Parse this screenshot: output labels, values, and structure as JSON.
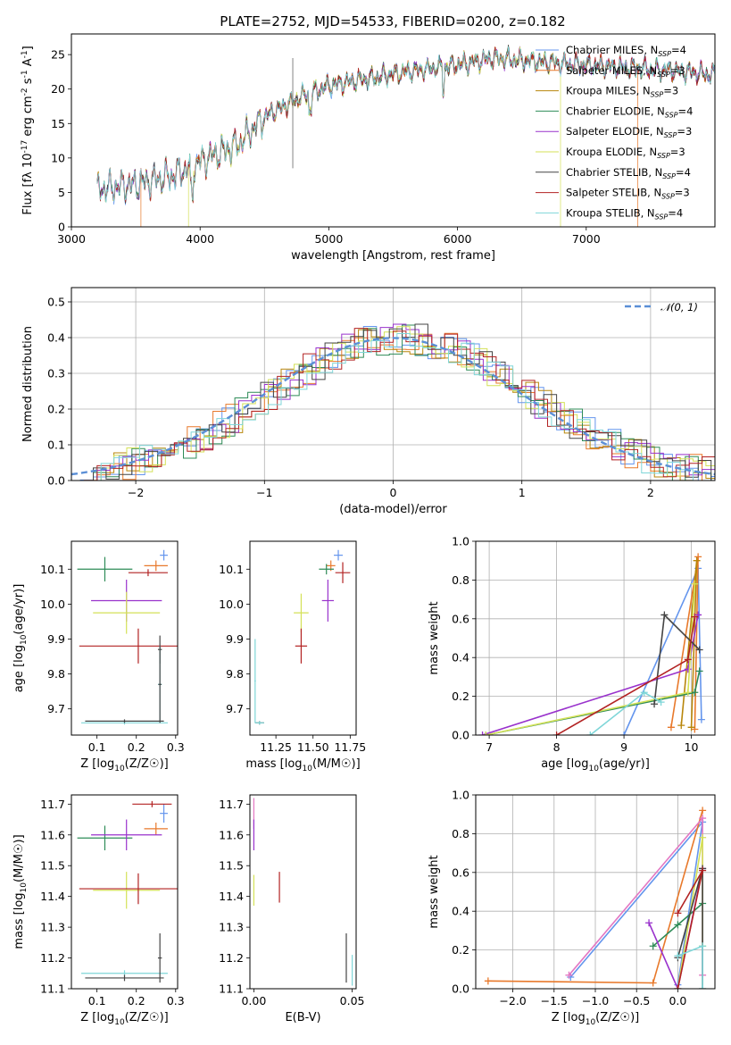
{
  "title": "PLATE=2752, MJD=54533, FIBERID=0200, z=0.182",
  "colors": [
    "#6495ed",
    "#e8792b",
    "#b8860b",
    "#2e8b57",
    "#9932cc",
    "#d4e157",
    "#444444",
    "#b22222",
    "#7fd6d8"
  ],
  "chart_data": [
    {
      "id": "spectrum",
      "type": "line",
      "xlabel": "wavelength [Angstrom, rest frame]",
      "ylabel": "Flux [f_λ 10^-17 erg cm^-2 s^-1 A^-1]",
      "xlim": [
        3000,
        8000
      ],
      "ylim": [
        0,
        28
      ],
      "xticks": [
        3000,
        4000,
        5000,
        6000,
        7000
      ],
      "yticks": [
        0,
        5,
        10,
        15,
        20,
        25
      ],
      "continuum": {
        "x": [
          3200,
          3500,
          3800,
          4000,
          4300,
          4500,
          4800,
          5000,
          5300,
          5600,
          6000,
          6300,
          6600,
          7000,
          7400,
          7800,
          8000
        ],
        "y": [
          5.5,
          6.2,
          7.5,
          9.5,
          12.0,
          16.0,
          19.0,
          20.5,
          21.5,
          22.5,
          23.5,
          24.5,
          24.0,
          23.5,
          23.0,
          22.5,
          22.0
        ]
      },
      "series": [
        {
          "name": "Chabrier MILES, N_SSP=4",
          "start": 3200,
          "end": 8000
        },
        {
          "name": "Salpeter MILES, N_SSP=3",
          "start": 3540,
          "end": 7400
        },
        {
          "name": "Kroupa MILES, N_SSP=3",
          "start": 3200,
          "end": 8000
        },
        {
          "name": "Chabrier ELODIE, N_SSP=4",
          "start": 3200,
          "end": 8000
        },
        {
          "name": "Salpeter ELODIE, N_SSP=3",
          "start": 3200,
          "end": 8000
        },
        {
          "name": "Kroupa ELODIE, N_SSP=3",
          "start": 3910,
          "end": 6800
        },
        {
          "name": "Chabrier STELIB, N_SSP=4",
          "start": 3200,
          "end": 8000
        },
        {
          "name": "Salpeter STELIB, N_SSP=3",
          "start": 3200,
          "end": 8000
        },
        {
          "name": "Kroupa STELIB, N_SSP=4",
          "start": 3200,
          "end": 8000
        }
      ]
    },
    {
      "id": "residuals",
      "type": "line",
      "xlabel": "(data-model)/error",
      "ylabel": "Normed distribution",
      "xlim": [
        -2.5,
        2.5
      ],
      "ylim": [
        0,
        0.54
      ],
      "xticks": [
        -2,
        -1,
        0,
        1,
        2
      ],
      "yticks": [
        0.0,
        0.1,
        0.2,
        0.3,
        0.4,
        0.5
      ],
      "bin_width": 0.1,
      "legend": "N(0,1)",
      "legend_location": "upper right",
      "grid": true
    },
    {
      "id": "age-vs-Z",
      "type": "scatter",
      "xlabel": "Z [log10(Z/Z☉)]",
      "ylabel": "age [log10(age/yr)]",
      "xlim": [
        0.035,
        0.305
      ],
      "ylim": [
        9.625,
        10.18
      ],
      "xticks": [
        0.1,
        0.2,
        0.3
      ],
      "yticks": [
        9.7,
        9.8,
        9.9,
        10.0,
        10.1
      ],
      "points": [
        {
          "x": 0.27,
          "y": 10.14,
          "xerr": 0.01,
          "yerr": 0.015,
          "c": 0
        },
        {
          "x": 0.25,
          "y": 10.11,
          "xerr": 0.03,
          "yerr": 0.015,
          "c": 1
        },
        {
          "x": 0.23,
          "y": 10.09,
          "xerr": 0.05,
          "yerr": 0.01,
          "c": 7
        },
        {
          "x": 0.12,
          "y": 10.1,
          "xerr": 0.07,
          "yerr": 0.035,
          "c": 3
        },
        {
          "x": 0.175,
          "y": 10.01,
          "xerr": 0.09,
          "yerr": 0.06,
          "c": 4
        },
        {
          "x": 0.175,
          "y": 9.975,
          "xerr": 0.085,
          "yerr": 0.06,
          "c": 5
        },
        {
          "x": 0.205,
          "y": 9.88,
          "xerr": 0.15,
          "yerr": 0.05,
          "c": 7
        },
        {
          "x": 0.26,
          "y": 9.87,
          "xerr": 0.005,
          "yerr": 0.04,
          "c": 6
        },
        {
          "x": 0.26,
          "y": 9.77,
          "xerr": 0.005,
          "yerr": 0.11,
          "c": 8
        },
        {
          "x": 0.17,
          "y": 9.66,
          "xerr": 0.11,
          "yerr": 0.005,
          "c": 8
        },
        {
          "x": 0.17,
          "y": 9.665,
          "xerr": 0.1,
          "yerr": 0.005,
          "c": 6
        },
        {
          "x": 0.26,
          "y": 9.77,
          "xerr": 0.004,
          "yerr": 0.11,
          "c": 6
        }
      ]
    },
    {
      "id": "age-vs-mass",
      "type": "scatter",
      "xlabel": "mass [log10(M/M☉)]",
      "ylabel": "",
      "xlim": [
        11.075,
        11.79
      ],
      "ylim": [
        9.625,
        10.18
      ],
      "xticks": [
        11.25,
        11.5,
        11.75
      ],
      "yticks": [
        9.7,
        9.8,
        9.9,
        10.0,
        10.1
      ],
      "points": [
        {
          "x": 11.67,
          "y": 10.14,
          "xerr": 0.03,
          "yerr": 0.015,
          "c": 0
        },
        {
          "x": 11.62,
          "y": 10.11,
          "xerr": 0.03,
          "yerr": 0.015,
          "c": 1
        },
        {
          "x": 11.7,
          "y": 10.09,
          "xerr": 0.05,
          "yerr": 0.03,
          "c": 7
        },
        {
          "x": 11.59,
          "y": 10.1,
          "xerr": 0.05,
          "yerr": 0.015,
          "c": 3
        },
        {
          "x": 11.6,
          "y": 10.01,
          "xerr": 0.04,
          "yerr": 0.06,
          "c": 4
        },
        {
          "x": 11.42,
          "y": 9.975,
          "xerr": 0.05,
          "yerr": 0.055,
          "c": 5
        },
        {
          "x": 11.42,
          "y": 9.88,
          "xerr": 0.04,
          "yerr": 0.05,
          "c": 7
        },
        {
          "x": 11.14,
          "y": 9.66,
          "xerr": 0.03,
          "yerr": 0.005,
          "c": 6
        },
        {
          "x": 11.14,
          "y": 9.66,
          "xerr": 0.03,
          "yerr": 0.005,
          "c": 8
        },
        {
          "x": 11.11,
          "y": 9.78,
          "xerr": 0.005,
          "yerr": 0.12,
          "c": 8
        }
      ]
    },
    {
      "id": "massweight-vs-age",
      "type": "line",
      "xlabel": "age [log10(age/yr)]",
      "ylabel": "mass weight",
      "xlim": [
        6.8,
        10.35
      ],
      "ylim": [
        0,
        1.0
      ],
      "xticks": [
        7,
        8,
        9,
        10
      ],
      "yticks": [
        0.0,
        0.2,
        0.4,
        0.6,
        0.8,
        1.0
      ],
      "grid": true,
      "series": [
        {
          "c": 0,
          "x": [
            9.0,
            10.1,
            10.15
          ],
          "y": [
            0.0,
            0.86,
            0.08
          ]
        },
        {
          "c": 1,
          "x": [
            9.7,
            10.1,
            10.05
          ],
          "y": [
            0.04,
            0.92,
            0.03
          ]
        },
        {
          "c": 2,
          "x": [
            9.85,
            10.08,
            10.0
          ],
          "y": [
            0.05,
            0.9,
            0.04
          ]
        },
        {
          "c": 3,
          "x": [
            6.95,
            10.05,
            10.12
          ],
          "y": [
            0.0,
            0.22,
            0.33
          ]
        },
        {
          "c": 4,
          "x": [
            6.9,
            9.95,
            10.1
          ],
          "y": [
            0.0,
            0.34,
            0.62
          ]
        },
        {
          "c": 5,
          "x": [
            6.95,
            9.95,
            10.05
          ],
          "y": [
            0.0,
            0.22,
            0.78
          ]
        },
        {
          "c": 6,
          "x": [
            9.45,
            9.6,
            10.12
          ],
          "y": [
            0.16,
            0.62,
            0.44
          ]
        },
        {
          "c": 7,
          "x": [
            8.0,
            9.95,
            10.05
          ],
          "y": [
            0.0,
            0.39,
            0.61
          ]
        },
        {
          "c": 8,
          "x": [
            8.5,
            9.3,
            9.55
          ],
          "y": [
            0.0,
            0.22,
            0.17
          ]
        }
      ]
    },
    {
      "id": "mass-vs-Z",
      "type": "scatter",
      "xlabel": "Z [log10(Z/Z☉)]",
      "ylabel": "mass [log10(M/M☉)]",
      "xlim": [
        0.035,
        0.305
      ],
      "ylim": [
        11.1,
        11.73
      ],
      "xticks": [
        0.1,
        0.2,
        0.3
      ],
      "yticks": [
        11.1,
        11.2,
        11.3,
        11.4,
        11.5,
        11.6,
        11.7
      ],
      "points": [
        {
          "x": 0.27,
          "y": 11.67,
          "xerr": 0.01,
          "yerr": 0.03,
          "c": 0
        },
        {
          "x": 0.25,
          "y": 11.62,
          "xerr": 0.03,
          "yerr": 0.02,
          "c": 1
        },
        {
          "x": 0.24,
          "y": 11.7,
          "xerr": 0.05,
          "yerr": 0.01,
          "c": 7
        },
        {
          "x": 0.12,
          "y": 11.59,
          "xerr": 0.07,
          "yerr": 0.04,
          "c": 3
        },
        {
          "x": 0.175,
          "y": 11.6,
          "xerr": 0.09,
          "yerr": 0.05,
          "c": 4
        },
        {
          "x": 0.175,
          "y": 11.42,
          "xerr": 0.085,
          "yerr": 0.06,
          "c": 5
        },
        {
          "x": 0.205,
          "y": 11.425,
          "xerr": 0.15,
          "yerr": 0.05,
          "c": 7
        },
        {
          "x": 0.17,
          "y": 11.15,
          "xerr": 0.11,
          "yerr": 0.01,
          "c": 8
        },
        {
          "x": 0.17,
          "y": 11.135,
          "xerr": 0.1,
          "yerr": 0.01,
          "c": 6
        },
        {
          "x": 0.26,
          "y": 11.2,
          "xerr": 0.005,
          "yerr": 0.08,
          "c": 6
        }
      ]
    },
    {
      "id": "mass-vs-ebv",
      "type": "scatter",
      "xlabel": "E(B-V)",
      "ylabel": "",
      "xlim": [
        -0.002,
        0.052
      ],
      "ylim": [
        11.1,
        11.73
      ],
      "xticks": [
        0.0,
        0.05
      ],
      "yticks": [
        11.1,
        11.2,
        11.3,
        11.4,
        11.5,
        11.6,
        11.7
      ],
      "points": [
        {
          "x": 0.0,
          "y": 11.67,
          "xerr": 0.0,
          "yerr": 0.05,
          "c": 9
        },
        {
          "x": 0.0,
          "y": 11.6,
          "xerr": 0.0,
          "yerr": 0.05,
          "c": 4
        },
        {
          "x": 0.0,
          "y": 11.42,
          "xerr": 0.0,
          "yerr": 0.05,
          "c": 5
        },
        {
          "x": 0.013,
          "y": 11.43,
          "xerr": 0.0,
          "yerr": 0.05,
          "c": 7
        },
        {
          "x": 0.047,
          "y": 11.2,
          "xerr": 0.0,
          "yerr": 0.08,
          "c": 6
        },
        {
          "x": 0.05,
          "y": 11.16,
          "xerr": 0.0,
          "yerr": 0.05,
          "c": 8
        }
      ]
    },
    {
      "id": "massweight-vs-Z",
      "type": "line",
      "xlabel": "Z [log10(Z/Z☉)]",
      "ylabel": "mass weight",
      "xlim": [
        -2.45,
        0.45
      ],
      "ylim": [
        0,
        1.0
      ],
      "xticks": [
        -2.0,
        -1.5,
        -1.0,
        -0.5,
        0.0
      ],
      "yticks": [
        0.0,
        0.2,
        0.4,
        0.6,
        0.8,
        1.0
      ],
      "grid": true,
      "series": [
        {
          "c": 0,
          "x": [
            -1.3,
            0.3,
            0.0
          ],
          "y": [
            0.06,
            0.86,
            0.02
          ]
        },
        {
          "c": 1,
          "x": [
            -2.3,
            -0.3,
            0.3
          ],
          "y": [
            0.04,
            0.03,
            0.92
          ]
        },
        {
          "c": 9,
          "x": [
            -1.32,
            0.3,
            0.3
          ],
          "y": [
            0.07,
            0.88,
            0.07
          ]
        },
        {
          "c": 3,
          "x": [
            -0.3,
            0.0,
            0.3
          ],
          "y": [
            0.22,
            0.33,
            0.44
          ]
        },
        {
          "c": 4,
          "x": [
            -0.35,
            0.0,
            0.3
          ],
          "y": [
            0.34,
            0.0,
            0.62
          ]
        },
        {
          "c": 5,
          "x": [
            0.0,
            0.3,
            0.3
          ],
          "y": [
            0.0,
            0.78,
            0.22
          ]
        },
        {
          "c": 6,
          "x": [
            0.0,
            0.3,
            0.3
          ],
          "y": [
            0.16,
            0.62,
            0.0
          ]
        },
        {
          "c": 7,
          "x": [
            0.0,
            0.3,
            0.0
          ],
          "y": [
            0.39,
            0.61,
            0.0
          ]
        },
        {
          "c": 8,
          "x": [
            0.0,
            0.3,
            0.3
          ],
          "y": [
            0.17,
            0.22,
            0.0
          ]
        }
      ]
    }
  ]
}
